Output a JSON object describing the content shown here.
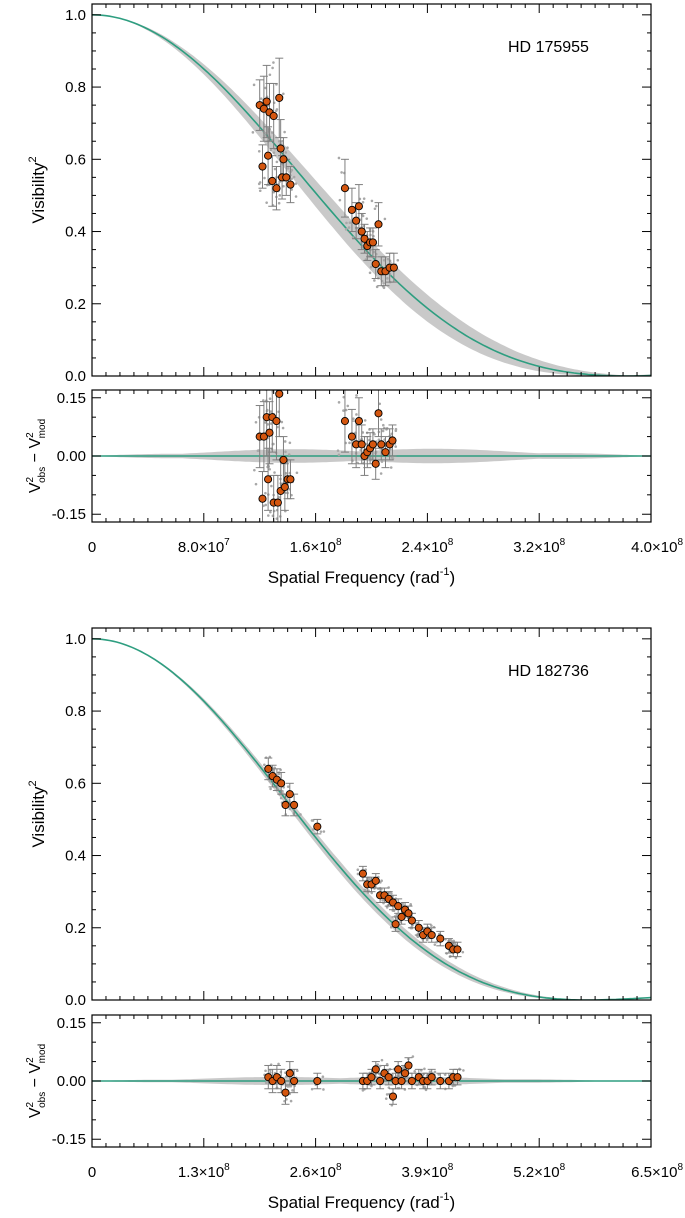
{
  "chart_data": [
    {
      "type": "scatter",
      "id": "hd175955",
      "star_label": "HD 175955",
      "xlim": [
        0,
        400000000.0
      ],
      "x_ticks": [
        0,
        80000000.0,
        160000000.0,
        240000000.0,
        320000000.0,
        400000000.0
      ],
      "x_tick_labels": [
        {
          "mant": "0",
          "exp": ""
        },
        {
          "mant": "8.0×10",
          "exp": "7"
        },
        {
          "mant": "1.6×10",
          "exp": "8"
        },
        {
          "mant": "2.4×10",
          "exp": "8"
        },
        {
          "mant": "3.2×10",
          "exp": "8"
        },
        {
          "mant": "4.0×10",
          "exp": "8"
        }
      ],
      "xlabel": {
        "main": "Spatial Frequency (rad",
        "sup": "-1",
        "tail": ")"
      },
      "main": {
        "ylabel": {
          "main": "Visibility",
          "sup": "2"
        },
        "ylim": [
          0,
          1.03
        ],
        "y_ticks": [
          0.0,
          0.2,
          0.4,
          0.6,
          0.8,
          1.0
        ],
        "y_tick_labels": [
          "0.0",
          "0.2",
          "0.4",
          "0.6",
          "0.8",
          "1.0"
        ],
        "model": {
          "zero": 383000000.0,
          "band_frac": 0.05,
          "color": "#2e9e80"
        },
        "points": [
          {
            "x": 120000000.0,
            "y": 0.75,
            "err": 0.07
          },
          {
            "x": 122000000.0,
            "y": 0.58,
            "err": 0.06
          },
          {
            "x": 123000000.0,
            "y": 0.74,
            "err": 0.09
          },
          {
            "x": 125000000.0,
            "y": 0.76,
            "err": 0.1
          },
          {
            "x": 126000000.0,
            "y": 0.61,
            "err": 0.08
          },
          {
            "x": 127000000.0,
            "y": 0.73,
            "err": 0.08
          },
          {
            "x": 129000000.0,
            "y": 0.54,
            "err": 0.07
          },
          {
            "x": 130000000.0,
            "y": 0.72,
            "err": 0.09
          },
          {
            "x": 132000000.0,
            "y": 0.52,
            "err": 0.06
          },
          {
            "x": 134000000.0,
            "y": 0.77,
            "err": 0.11
          },
          {
            "x": 135000000.0,
            "y": 0.63,
            "err": 0.08
          },
          {
            "x": 136000000.0,
            "y": 0.55,
            "err": 0.06
          },
          {
            "x": 137000000.0,
            "y": 0.6,
            "err": 0.06
          },
          {
            "x": 139000000.0,
            "y": 0.55,
            "err": 0.05
          },
          {
            "x": 142000000.0,
            "y": 0.53,
            "err": 0.05
          },
          {
            "x": 181000000.0,
            "y": 0.52,
            "err": 0.08
          },
          {
            "x": 186000000.0,
            "y": 0.46,
            "err": 0.06
          },
          {
            "x": 189000000.0,
            "y": 0.43,
            "err": 0.05
          },
          {
            "x": 191000000.0,
            "y": 0.47,
            "err": 0.06
          },
          {
            "x": 193000000.0,
            "y": 0.4,
            "err": 0.05
          },
          {
            "x": 195000000.0,
            "y": 0.38,
            "err": 0.04
          },
          {
            "x": 197000000.0,
            "y": 0.36,
            "err": 0.04
          },
          {
            "x": 199000000.0,
            "y": 0.37,
            "err": 0.04
          },
          {
            "x": 201000000.0,
            "y": 0.37,
            "err": 0.04
          },
          {
            "x": 203000000.0,
            "y": 0.31,
            "err": 0.04
          },
          {
            "x": 205000000.0,
            "y": 0.42,
            "err": 0.06
          },
          {
            "x": 207000000.0,
            "y": 0.29,
            "err": 0.04
          },
          {
            "x": 210000000.0,
            "y": 0.29,
            "err": 0.04
          },
          {
            "x": 213000000.0,
            "y": 0.3,
            "err": 0.04
          },
          {
            "x": 216000000.0,
            "y": 0.3,
            "err": 0.04
          }
        ]
      },
      "residual": {
        "ylabel": {
          "a": "V",
          "a_sup": "2",
          "a_sub": "obs",
          "mid": " − ",
          "b": "V",
          "b_sup": "2",
          "b_sub": "mod"
        },
        "ylim": [
          -0.17,
          0.17
        ],
        "y_ticks": [
          -0.15,
          0.0,
          0.15
        ],
        "y_tick_labels": [
          "-0.15",
          "0.00",
          "0.15"
        ],
        "band_height": 0.02,
        "points": [
          {
            "x": 120000000.0,
            "y": 0.05,
            "err": 0.08
          },
          {
            "x": 122000000.0,
            "y": -0.11,
            "err": 0.07
          },
          {
            "x": 123000000.0,
            "y": 0.05,
            "err": 0.09
          },
          {
            "x": 125000000.0,
            "y": 0.1,
            "err": 0.1
          },
          {
            "x": 126000000.0,
            "y": -0.06,
            "err": 0.08
          },
          {
            "x": 127000000.0,
            "y": 0.06,
            "err": 0.08
          },
          {
            "x": 129000000.0,
            "y": 0.1,
            "err": 0.09
          },
          {
            "x": 130000000.0,
            "y": -0.12,
            "err": 0.07
          },
          {
            "x": 132000000.0,
            "y": 0.09,
            "err": 0.1
          },
          {
            "x": 133000000.0,
            "y": -0.12,
            "err": 0.07
          },
          {
            "x": 134000000.0,
            "y": 0.16,
            "err": 0.11
          },
          {
            "x": 135000000.0,
            "y": -0.09,
            "err": 0.08
          },
          {
            "x": 137000000.0,
            "y": -0.01,
            "err": 0.06
          },
          {
            "x": 138000000.0,
            "y": -0.08,
            "err": 0.06
          },
          {
            "x": 140000000.0,
            "y": -0.06,
            "err": 0.05
          },
          {
            "x": 142000000.0,
            "y": -0.06,
            "err": 0.05
          },
          {
            "x": 181000000.0,
            "y": 0.09,
            "err": 0.08
          },
          {
            "x": 186000000.0,
            "y": 0.05,
            "err": 0.07
          },
          {
            "x": 189000000.0,
            "y": 0.03,
            "err": 0.06
          },
          {
            "x": 191000000.0,
            "y": 0.09,
            "err": 0.06
          },
          {
            "x": 193000000.0,
            "y": 0.03,
            "err": 0.05
          },
          {
            "x": 195000000.0,
            "y": 0.0,
            "err": 0.05
          },
          {
            "x": 197000000.0,
            "y": 0.01,
            "err": 0.04
          },
          {
            "x": 199000000.0,
            "y": 0.02,
            "err": 0.04
          },
          {
            "x": 201000000.0,
            "y": 0.03,
            "err": 0.04
          },
          {
            "x": 203000000.0,
            "y": -0.02,
            "err": 0.04
          },
          {
            "x": 205000000.0,
            "y": 0.11,
            "err": 0.06
          },
          {
            "x": 207000000.0,
            "y": 0.03,
            "err": 0.04
          },
          {
            "x": 210000000.0,
            "y": 0.01,
            "err": 0.04
          },
          {
            "x": 213000000.0,
            "y": 0.03,
            "err": 0.04
          },
          {
            "x": 215000000.0,
            "y": 0.04,
            "err": 0.04
          }
        ]
      }
    },
    {
      "type": "scatter",
      "id": "hd182736",
      "star_label": "HD 182736",
      "xlim": [
        0,
        650000000.0
      ],
      "x_ticks": [
        0,
        130000000.0,
        260000000.0,
        390000000.0,
        520000000.0,
        650000000.0
      ],
      "x_tick_labels": [
        {
          "mant": "0",
          "exp": ""
        },
        {
          "mant": "1.3×10",
          "exp": "8"
        },
        {
          "mant": "2.6×10",
          "exp": "8"
        },
        {
          "mant": "3.9×10",
          "exp": "8"
        },
        {
          "mant": "5.2×10",
          "exp": "8"
        },
        {
          "mant": "6.5×10",
          "exp": "8"
        }
      ],
      "xlabel": {
        "main": "Spatial Frequency (rad",
        "sup": "-1",
        "tail": ")"
      },
      "main": {
        "ylabel": {
          "main": "Visibility",
          "sup": "2"
        },
        "ylim": [
          0,
          1.03
        ],
        "y_ticks": [
          0.0,
          0.2,
          0.4,
          0.6,
          0.8,
          1.0
        ],
        "y_tick_labels": [
          "0.0",
          "0.2",
          "0.4",
          "0.6",
          "0.8",
          "1.0"
        ],
        "model": {
          "zero": 577000000.0,
          "band_frac": 0.02,
          "color": "#2e9e80"
        },
        "points": [
          {
            "x": 205000000.0,
            "y": 0.64,
            "err": 0.03
          },
          {
            "x": 210000000.0,
            "y": 0.62,
            "err": 0.03
          },
          {
            "x": 215000000.0,
            "y": 0.61,
            "err": 0.03
          },
          {
            "x": 220000000.0,
            "y": 0.6,
            "err": 0.03
          },
          {
            "x": 225000000.0,
            "y": 0.54,
            "err": 0.03
          },
          {
            "x": 230000000.0,
            "y": 0.57,
            "err": 0.03
          },
          {
            "x": 235000000.0,
            "y": 0.54,
            "err": 0.03
          },
          {
            "x": 262000000.0,
            "y": 0.48,
            "err": 0.02
          },
          {
            "x": 315000000.0,
            "y": 0.35,
            "err": 0.02
          },
          {
            "x": 320000000.0,
            "y": 0.32,
            "err": 0.02
          },
          {
            "x": 325000000.0,
            "y": 0.32,
            "err": 0.02
          },
          {
            "x": 330000000.0,
            "y": 0.33,
            "err": 0.02
          },
          {
            "x": 335000000.0,
            "y": 0.29,
            "err": 0.02
          },
          {
            "x": 340000000.0,
            "y": 0.29,
            "err": 0.02
          },
          {
            "x": 345000000.0,
            "y": 0.28,
            "err": 0.02
          },
          {
            "x": 350000000.0,
            "y": 0.27,
            "err": 0.02
          },
          {
            "x": 353000000.0,
            "y": 0.21,
            "err": 0.02
          },
          {
            "x": 356000000.0,
            "y": 0.26,
            "err": 0.02
          },
          {
            "x": 360000000.0,
            "y": 0.23,
            "err": 0.02
          },
          {
            "x": 364000000.0,
            "y": 0.25,
            "err": 0.02
          },
          {
            "x": 368000000.0,
            "y": 0.24,
            "err": 0.02
          },
          {
            "x": 372000000.0,
            "y": 0.22,
            "err": 0.02
          },
          {
            "x": 380000000.0,
            "y": 0.2,
            "err": 0.02
          },
          {
            "x": 385000000.0,
            "y": 0.18,
            "err": 0.02
          },
          {
            "x": 390000000.0,
            "y": 0.19,
            "err": 0.02
          },
          {
            "x": 395000000.0,
            "y": 0.18,
            "err": 0.02
          },
          {
            "x": 405000000.0,
            "y": 0.17,
            "err": 0.02
          },
          {
            "x": 415000000.0,
            "y": 0.15,
            "err": 0.02
          },
          {
            "x": 420000000.0,
            "y": 0.14,
            "err": 0.02
          },
          {
            "x": 425000000.0,
            "y": 0.14,
            "err": 0.02
          }
        ]
      },
      "residual": {
        "ylabel": {
          "a": "V",
          "a_sup": "2",
          "a_sub": "obs",
          "mid": " − ",
          "b": "V",
          "b_sup": "2",
          "b_sub": "mod"
        },
        "ylim": [
          -0.17,
          0.17
        ],
        "y_ticks": [
          -0.15,
          0.0,
          0.15
        ],
        "y_tick_labels": [
          "-0.15",
          "0.00",
          "0.15"
        ],
        "band_height": 0.012,
        "points": [
          {
            "x": 205000000.0,
            "y": 0.01,
            "err": 0.03
          },
          {
            "x": 210000000.0,
            "y": 0.0,
            "err": 0.03
          },
          {
            "x": 215000000.0,
            "y": 0.01,
            "err": 0.03
          },
          {
            "x": 220000000.0,
            "y": 0.0,
            "err": 0.03
          },
          {
            "x": 225000000.0,
            "y": -0.03,
            "err": 0.03
          },
          {
            "x": 230000000.0,
            "y": 0.02,
            "err": 0.03
          },
          {
            "x": 235000000.0,
            "y": 0.0,
            "err": 0.03
          },
          {
            "x": 262000000.0,
            "y": 0.0,
            "err": 0.02
          },
          {
            "x": 315000000.0,
            "y": 0.0,
            "err": 0.02
          },
          {
            "x": 320000000.0,
            "y": 0.0,
            "err": 0.02
          },
          {
            "x": 325000000.0,
            "y": 0.01,
            "err": 0.02
          },
          {
            "x": 330000000.0,
            "y": 0.03,
            "err": 0.02
          },
          {
            "x": 335000000.0,
            "y": 0.0,
            "err": 0.02
          },
          {
            "x": 340000000.0,
            "y": 0.02,
            "err": 0.02
          },
          {
            "x": 345000000.0,
            "y": 0.01,
            "err": 0.02
          },
          {
            "x": 350000000.0,
            "y": -0.04,
            "err": 0.02
          },
          {
            "x": 353000000.0,
            "y": 0.0,
            "err": 0.02
          },
          {
            "x": 356000000.0,
            "y": 0.03,
            "err": 0.02
          },
          {
            "x": 360000000.0,
            "y": 0.0,
            "err": 0.02
          },
          {
            "x": 364000000.0,
            "y": 0.02,
            "err": 0.02
          },
          {
            "x": 368000000.0,
            "y": 0.04,
            "err": 0.02
          },
          {
            "x": 372000000.0,
            "y": 0.0,
            "err": 0.02
          },
          {
            "x": 380000000.0,
            "y": 0.01,
            "err": 0.02
          },
          {
            "x": 385000000.0,
            "y": 0.0,
            "err": 0.02
          },
          {
            "x": 390000000.0,
            "y": 0.0,
            "err": 0.02
          },
          {
            "x": 395000000.0,
            "y": 0.01,
            "err": 0.02
          },
          {
            "x": 405000000.0,
            "y": 0.0,
            "err": 0.02
          },
          {
            "x": 415000000.0,
            "y": 0.0,
            "err": 0.02
          },
          {
            "x": 420000000.0,
            "y": 0.01,
            "err": 0.02
          },
          {
            "x": 425000000.0,
            "y": 0.01,
            "err": 0.02
          }
        ]
      }
    }
  ],
  "colors": {
    "point_fill": "#d4560f",
    "point_stroke": "#000000",
    "error_bar": "#7f7f7f",
    "raw_points": "#a8a8a8",
    "uncertainty_band": "#c9c9c9",
    "model_line": "#2e9e80"
  }
}
